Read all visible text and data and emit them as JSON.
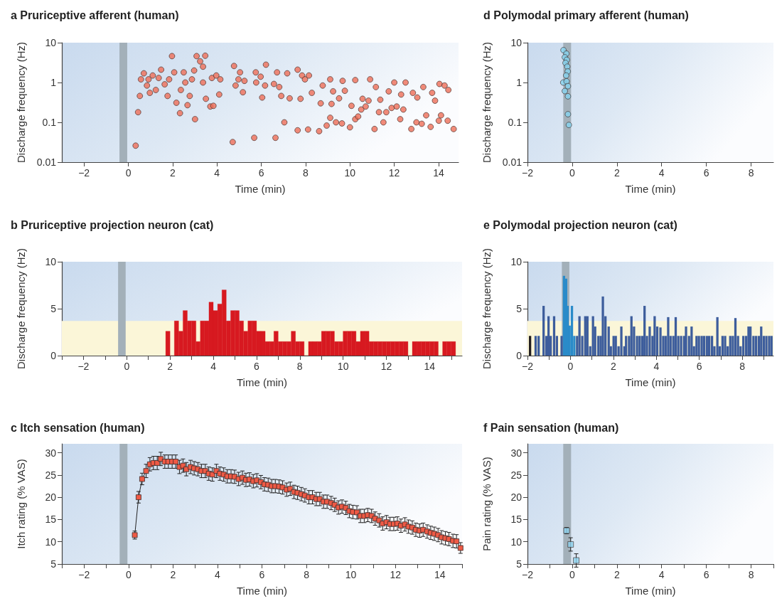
{
  "chart_data": [
    {
      "type": "scatter",
      "title": "a Pruriceptive afferent (human)",
      "xlabel": "Time (min)",
      "ylabel": "Discharge frequency (Hz)",
      "marker": "circle",
      "log": "y",
      "series": [
        {
          "color": "#ef6e58",
          "x": [
            0.33,
            0.44,
            0.52,
            0.57,
            0.7,
            0.84,
            0.91,
            0.97,
            1.1,
            1.24,
            1.37,
            1.48,
            1.64,
            1.77,
            1.84,
            1.97,
            2.07,
            2.17,
            2.33,
            2.37,
            2.5,
            2.57,
            2.67,
            2.77,
            2.87,
            2.97,
            3.01,
            3.08,
            3.24,
            3.37,
            3.37,
            3.47,
            3.5,
            3.7,
            3.77,
            3.84,
            3.97,
            4.1,
            4.15,
            4.71,
            4.77,
            4.84,
            4.97,
            5.04,
            5.17,
            5.24,
            5.68,
            5.75,
            5.77,
            5.97,
            6.04,
            6.17,
            6.21,
            6.57,
            6.64,
            6.71,
            6.81,
            6.9,
            7.04,
            7.17,
            7.28,
            7.64,
            7.64,
            7.77,
            7.84,
            7.97,
            8.11,
            8.15,
            8.28,
            8.61,
            8.68,
            8.77,
            8.95,
            9.11,
            9.11,
            9.17,
            9.24,
            9.37,
            9.51,
            9.64,
            9.67,
            9.77,
            10.0,
            10.07,
            10.24,
            10.24,
            10.37,
            10.51,
            10.57,
            10.71,
            10.84,
            10.91,
            11.11,
            11.17,
            11.31,
            11.37,
            11.51,
            11.64,
            11.75,
            11.88,
            12.0,
            12.11,
            12.27,
            12.31,
            12.41,
            12.51,
            12.77,
            12.84,
            13.0,
            13.04,
            13.24,
            13.31,
            13.44,
            13.64,
            13.71,
            13.84,
            14.01,
            14.04,
            14.11,
            14.27,
            14.41,
            14.44,
            14.68
          ],
          "values": [
            0.026,
            0.18,
            0.46,
            1.2,
            1.7,
            0.84,
            1.2,
            0.55,
            1.5,
            0.65,
            1.3,
            2.1,
            0.9,
            0.46,
            1.2,
            4.6,
            1.8,
            0.31,
            0.17,
            0.65,
            1.8,
            1.0,
            0.27,
            0.46,
            1.2,
            2.0,
            0.12,
            4.6,
            3.4,
            2.5,
            1.0,
            4.7,
            0.39,
            0.25,
            1.3,
            0.26,
            1.5,
            0.5,
            1.2,
            0.032,
            2.6,
            0.84,
            1.2,
            1.8,
            0.57,
            1.1,
            0.041,
            1.8,
            1.0,
            1.4,
            0.42,
            0.84,
            2.8,
            0.92,
            0.041,
            1.8,
            0.77,
            0.46,
            0.1,
            1.7,
            0.4,
            2.1,
            0.063,
            0.39,
            1.5,
            1.2,
            0.066,
            1.5,
            0.55,
            0.06,
            0.3,
            0.84,
            0.083,
            1.2,
            0.13,
            0.29,
            0.6,
            0.1,
            0.4,
            0.094,
            1.1,
            0.62,
            0.075,
            0.26,
            1.15,
            0.12,
            0.14,
            0.21,
            0.39,
            0.25,
            0.35,
            1.2,
            0.068,
            0.77,
            0.18,
            0.37,
            0.1,
            0.18,
            0.6,
            0.23,
            1.0,
            0.25,
            0.12,
            0.5,
            0.21,
            1.0,
            0.068,
            0.55,
            0.1,
            0.42,
            0.092,
            0.77,
            0.15,
            0.077,
            0.55,
            0.35,
            0.11,
            0.92,
            0.15,
            0.84,
            0.11,
            0.65,
            0.068
          ]
        }
      ],
      "xlim": [
        -3,
        14.9
      ],
      "xticks": [
        {
          "value": -2,
          "label": "−2"
        },
        0,
        2,
        4,
        6,
        8,
        10,
        12,
        14
      ],
      "ylim": [
        0.01,
        10
      ],
      "yticks": [
        0.01,
        0.1,
        1,
        10
      ],
      "bands": [
        {
          "axis": "x",
          "from": -0.4,
          "to": -0.05,
          "color": "#a3b0b9"
        }
      ]
    },
    {
      "type": "histogram",
      "title": "b Pruriceptive projection neuron (cat)",
      "xlabel": "Time (min)",
      "ylabel": "Discharge frequency (Hz)",
      "color": "#d71920",
      "bins": [
        1.8,
        2.0,
        2.2,
        2.4,
        2.6,
        2.8,
        3.0,
        3.2,
        3.4,
        3.6,
        3.8,
        4.0,
        4.2,
        4.4,
        4.6,
        4.8,
        5.0,
        5.2,
        5.4,
        5.6,
        5.8,
        6.0,
        6.2,
        6.4,
        6.6,
        6.8,
        7.0,
        7.2,
        7.4,
        7.6,
        7.8,
        8.0,
        8.2,
        8.4,
        8.6,
        8.8,
        9.0,
        9.2,
        9.4,
        9.6,
        9.8,
        10.0,
        10.2,
        10.4,
        10.6,
        10.8,
        11.0,
        11.2,
        11.4,
        11.6,
        11.8,
        12.0,
        12.2,
        12.4,
        12.6,
        12.8,
        13.0,
        13.2,
        13.4,
        13.6,
        13.8,
        14.0,
        14.2,
        14.4,
        14.6,
        14.8,
        15.0,
        15.2
      ],
      "values": [
        2.6,
        0,
        3.7,
        2.6,
        4.8,
        3.7,
        3.7,
        1.5,
        3.7,
        3.7,
        5.7,
        4.8,
        5.5,
        7.0,
        3.7,
        4.8,
        4.8,
        3.7,
        2.6,
        3.7,
        3.7,
        2.6,
        2.6,
        1.5,
        1.5,
        2.6,
        1.5,
        1.5,
        1.5,
        2.6,
        1.5,
        1.5,
        0,
        1.5,
        1.5,
        1.5,
        2.6,
        2.6,
        2.6,
        1.5,
        1.5,
        2.6,
        2.6,
        2.6,
        1.5,
        2.6,
        2.6,
        1.5,
        1.5,
        1.5,
        1.5,
        1.5,
        1.5,
        1.5,
        1.5,
        1.5,
        0,
        1.5,
        1.5,
        1.5,
        1.5,
        1.5,
        1.5,
        0,
        1.5,
        1.5,
        1.5
      ],
      "xlim": [
        -3,
        15.5
      ],
      "xticks": [
        {
          "value": -3,
          "label": null
        },
        {
          "value": -2,
          "label": "−2"
        },
        {
          "value": -1,
          "label": null
        },
        0,
        {
          "value": 1,
          "label": null
        },
        2,
        {
          "value": 3,
          "label": null
        },
        4,
        {
          "value": 5,
          "label": null
        },
        6,
        {
          "value": 7,
          "label": null
        },
        8,
        {
          "value": 9,
          "label": null
        },
        10,
        {
          "value": 11,
          "label": null
        },
        12,
        {
          "value": 13,
          "label": null
        },
        14,
        {
          "value": 15,
          "label": null
        }
      ],
      "ylim": [
        0,
        10
      ],
      "yticks": [
        0,
        5,
        10
      ],
      "bands": [
        {
          "axis": "y",
          "from": 0,
          "to": 3.7,
          "color": "#fbf6d8"
        },
        {
          "axis": "x",
          "from": -0.4,
          "to": -0.05,
          "color": "#a3b0b9"
        }
      ]
    },
    {
      "type": "line",
      "title": "c Itch sensation (human)",
      "xlabel": "Time (min)",
      "ylabel": "Itch rating (% VAS)",
      "marker": "square",
      "line_style": "solid",
      "series": [
        {
          "color": "#ef5a45",
          "x": [
            0.28,
            0.45,
            0.61,
            0.79,
            0.96,
            1.12,
            1.29,
            1.45,
            1.63,
            1.79,
            1.96,
            2.12,
            2.29,
            2.45,
            2.6,
            2.79,
            2.95,
            3.12,
            3.28,
            3.45,
            3.61,
            3.77,
            3.95,
            4.11,
            4.28,
            4.44,
            4.61,
            4.77,
            4.95,
            5.12,
            5.28,
            5.44,
            5.61,
            5.77,
            5.95,
            6.11,
            6.28,
            6.44,
            6.6,
            6.77,
            6.93,
            7.11,
            7.27,
            7.44,
            7.6,
            7.77,
            7.93,
            8.11,
            8.27,
            8.44,
            8.6,
            8.77,
            8.93,
            9.11,
            9.27,
            9.44,
            9.6,
            9.77,
            9.93,
            10.09,
            10.27,
            10.43,
            10.6,
            10.76,
            10.93,
            11.09,
            11.27,
            11.43,
            11.6,
            11.76,
            11.93,
            12.09,
            12.25,
            12.43,
            12.59,
            12.76,
            12.92,
            13.09,
            13.25,
            13.43,
            13.59,
            13.75,
            13.92,
            14.08,
            14.25,
            14.41,
            14.59,
            14.75,
            14.93
          ],
          "values": [
            11.5,
            20,
            24.1,
            25.9,
            27.4,
            27.7,
            27.7,
            28.6,
            28,
            28,
            28,
            28,
            26.8,
            27.1,
            26.3,
            26.8,
            26.5,
            26.3,
            25.9,
            25.9,
            25.3,
            25.1,
            25.9,
            25.3,
            25.1,
            24.7,
            24.7,
            24.6,
            24.1,
            24.4,
            23.9,
            24,
            23.6,
            23.8,
            23.4,
            22.9,
            22.8,
            22.5,
            22.5,
            22.4,
            22.2,
            21.7,
            21.9,
            21.2,
            21,
            20.7,
            20.4,
            20,
            20,
            19.6,
            19.6,
            19,
            19,
            18.7,
            18.3,
            17.7,
            17.9,
            17.6,
            16.9,
            16.7,
            16.6,
            15.8,
            15.8,
            16,
            15.8,
            15.2,
            14.8,
            14.1,
            14.4,
            14,
            14,
            14.1,
            13.6,
            13.9,
            13.4,
            13.2,
            12.7,
            12.5,
            12.7,
            12.3,
            12,
            11.8,
            11.5,
            11,
            10.8,
            10.6,
            10.2,
            10.1,
            8.6
          ],
          "errors": [
            0.9,
            1.3,
            1.3,
            1.5,
            1.5,
            1.5,
            1.5,
            1.5,
            1.5,
            1.5,
            1.5,
            1.5,
            1.5,
            1.5,
            1.5,
            1.5,
            1.5,
            1.5,
            1.5,
            1.5,
            1.5,
            1.5,
            1.5,
            1.5,
            1.5,
            1.5,
            1.5,
            1.5,
            1.5,
            1.5,
            1.5,
            1.5,
            1.5,
            1.5,
            1.5,
            1.5,
            1.5,
            1.5,
            1.5,
            1.5,
            1.5,
            1.5,
            1.5,
            1.5,
            1.5,
            1.5,
            1.5,
            1.5,
            1.5,
            1.5,
            1.5,
            1.5,
            1.5,
            1.5,
            1.5,
            1.5,
            1.5,
            1.5,
            1.5,
            1.5,
            1.5,
            1.5,
            1.5,
            1.5,
            1.5,
            1.5,
            1.5,
            1.5,
            1.5,
            1.5,
            1.5,
            1.5,
            1.5,
            1.5,
            1.5,
            1.5,
            1.5,
            1.5,
            1.5,
            1.5,
            1.5,
            1.5,
            1.5,
            1.5,
            1.5,
            1.5,
            1.5,
            1.5,
            1.2
          ]
        }
      ],
      "xlim": [
        -3,
        15
      ],
      "xticks": [
        {
          "value": -3,
          "label": null
        },
        {
          "value": -2,
          "label": "−2"
        },
        {
          "value": -1,
          "label": null
        },
        0,
        {
          "value": 1,
          "label": null
        },
        2,
        {
          "value": 3,
          "label": null
        },
        4,
        {
          "value": 5,
          "label": null
        },
        6,
        {
          "value": 7,
          "label": null
        },
        8,
        {
          "value": 9,
          "label": null
        },
        10,
        {
          "value": 11,
          "label": null
        },
        12,
        {
          "value": 13,
          "label": null
        },
        14,
        {
          "value": 15,
          "label": null
        }
      ],
      "ylim": [
        5,
        32
      ],
      "yticks": [
        5,
        10,
        15,
        20,
        25,
        30
      ],
      "bands": [
        {
          "axis": "x",
          "from": -0.4,
          "to": -0.05,
          "color": "#a3b0b9"
        }
      ]
    },
    {
      "type": "scatter",
      "title": "d Polymodal primary afferent (human)",
      "xlabel": "Time (min)",
      "ylabel": "Discharge frequency (Hz)",
      "marker": "circle",
      "log": "y",
      "series": [
        {
          "color": "#86d3ef",
          "x": [
            -0.39,
            -0.26,
            -0.33,
            -0.24,
            -0.3,
            -0.22,
            -0.2,
            -0.27,
            -0.4,
            -0.25,
            -0.19,
            -0.33,
            -0.19,
            -0.19,
            -0.15
          ],
          "values": [
            6.5,
            5.3,
            4.3,
            3.7,
            3.1,
            2.5,
            1.9,
            1.5,
            1.0,
            1.07,
            0.81,
            0.61,
            0.45,
            0.16,
            0.086
          ]
        }
      ],
      "xlim": [
        -2,
        9
      ],
      "xticks": [
        {
          "value": -2,
          "label": "−2"
        },
        0,
        2,
        4,
        6,
        8
      ],
      "ylim": [
        0.01,
        10
      ],
      "yticks": [
        0.01,
        0.1,
        1,
        10
      ],
      "bands": [
        {
          "axis": "x",
          "from": -0.4,
          "to": -0.05,
          "color": "#a3b0b9"
        }
      ]
    },
    {
      "type": "bar",
      "title": "e Polymodal projection neuron (cat)",
      "xlabel": "Time (min)",
      "ylabel": "Discharge frequency (Hz)",
      "series": [
        {
          "color": "#231f20",
          "x": [
            -1.88
          ],
          "values": [
            2.1
          ]
        },
        {
          "color": "#2a8bc9",
          "x": [
            -0.3,
            -0.2,
            -0.13,
            -0.04,
            0.07,
            0.18
          ],
          "values": [
            8.5,
            8.2,
            5.3,
            3.2,
            5.3,
            2.1
          ]
        },
        {
          "color": "#3d5d9c",
          "x": [
            -1.62,
            -1.48,
            -1.25,
            -1.12,
            -1.02,
            -0.92,
            -0.76,
            -0.63,
            -0.41,
            0.31,
            0.42,
            0.55,
            0.69,
            0.79,
            0.92,
            1.05,
            1.15,
            1.3,
            1.41,
            1.51,
            1.63,
            1.78,
            1.88,
            2.01,
            2.11,
            2.24,
            2.37,
            2.51,
            2.59,
            2.73,
            2.84,
            2.96,
            3.1,
            3.22,
            3.34,
            3.45,
            3.56,
            3.69,
            3.82,
            3.92,
            4.04,
            4.19,
            4.32,
            4.43,
            4.55,
            4.66,
            4.79,
            4.9,
            5.02,
            5.15,
            5.29,
            5.38,
            5.52,
            5.64,
            5.75,
            5.87,
            5.98,
            6.11,
            6.22,
            6.35,
            6.46,
            6.59,
            6.7,
            6.84,
            6.95,
            7.08,
            7.2,
            7.32,
            7.44,
            7.56,
            7.68,
            7.8,
            7.92,
            8.05,
            8.18,
            8.29,
            8.38,
            8.52,
            8.64,
            8.77,
            8.88,
            9.0,
            9.12,
            9.25,
            9.36
          ],
          "values": [
            2.1,
            2.1,
            5.3,
            2.1,
            4.2,
            2.1,
            4.2,
            2.1,
            2.1,
            2.1,
            4.2,
            2.1,
            4.2,
            4.2,
            1.0,
            4.2,
            3.1,
            2.1,
            2.1,
            6.3,
            4.2,
            3.1,
            1.0,
            2.1,
            2.1,
            1.0,
            3.1,
            1.0,
            2.1,
            2.1,
            4.2,
            3.1,
            2.1,
            2.1,
            2.1,
            5.3,
            2.1,
            3.1,
            2.1,
            4.2,
            3.1,
            3.0,
            2.1,
            2.1,
            4.1,
            2.1,
            2.1,
            4.1,
            2.1,
            2.1,
            2.1,
            3.1,
            2.1,
            3.1,
            1.0,
            2.1,
            2.1,
            2.1,
            2.1,
            2.1,
            2.1,
            2.1,
            1.0,
            4.1,
            1.0,
            2.1,
            2.1,
            1.0,
            2.1,
            2.1,
            4.0,
            2.1,
            1.0,
            2.1,
            2.1,
            3.1,
            3.1,
            2.1,
            2.1,
            2.1,
            3.1,
            2.1,
            2.1,
            2.1,
            2.1
          ]
        }
      ],
      "xlim": [
        -2,
        9.45
      ],
      "xticks": [
        {
          "value": -2,
          "label": "−2"
        },
        {
          "value": -1,
          "label": null
        },
        0,
        {
          "value": 1,
          "label": null
        },
        2,
        {
          "value": 3,
          "label": null
        },
        4,
        {
          "value": 5,
          "label": null
        },
        6,
        {
          "value": 7,
          "label": null
        },
        8,
        {
          "value": 9,
          "label": null
        }
      ],
      "ylim": [
        0,
        10
      ],
      "yticks": [
        0,
        5,
        10
      ],
      "bands": [
        {
          "axis": "y",
          "from": 0,
          "to": 3.7,
          "color": "#fbf6d8"
        },
        {
          "axis": "x",
          "from": -0.4,
          "to": -0.05,
          "color": "#a3b0b9"
        }
      ]
    },
    {
      "type": "scatter",
      "title": "f Pain sensation (human)",
      "xlabel": "Time (min)",
      "ylabel": "Pain rating (% VAS)",
      "marker": "square",
      "series": [
        {
          "color": "#8fd3ef",
          "x": [
            -0.25,
            -0.07,
            0.18
          ],
          "values": [
            12.5,
            9.4,
            5.8
          ],
          "errors": [
            0.7,
            1.5,
            1.5
          ]
        }
      ],
      "xlim": [
        -2,
        9
      ],
      "xticks": [
        {
          "value": -2,
          "label": "−2"
        },
        {
          "value": -1,
          "label": null
        },
        0,
        {
          "value": 1,
          "label": null
        },
        2,
        {
          "value": 3,
          "label": null
        },
        4,
        {
          "value": 5,
          "label": null
        },
        6,
        {
          "value": 7,
          "label": null
        },
        8,
        {
          "value": 9,
          "label": null
        }
      ],
      "ylim": [
        5,
        32
      ],
      "yticks": [
        5,
        10,
        15,
        20,
        25,
        30
      ],
      "bands": [
        {
          "axis": "x",
          "from": -0.4,
          "to": -0.05,
          "color": "#a3b0b9"
        }
      ]
    }
  ]
}
